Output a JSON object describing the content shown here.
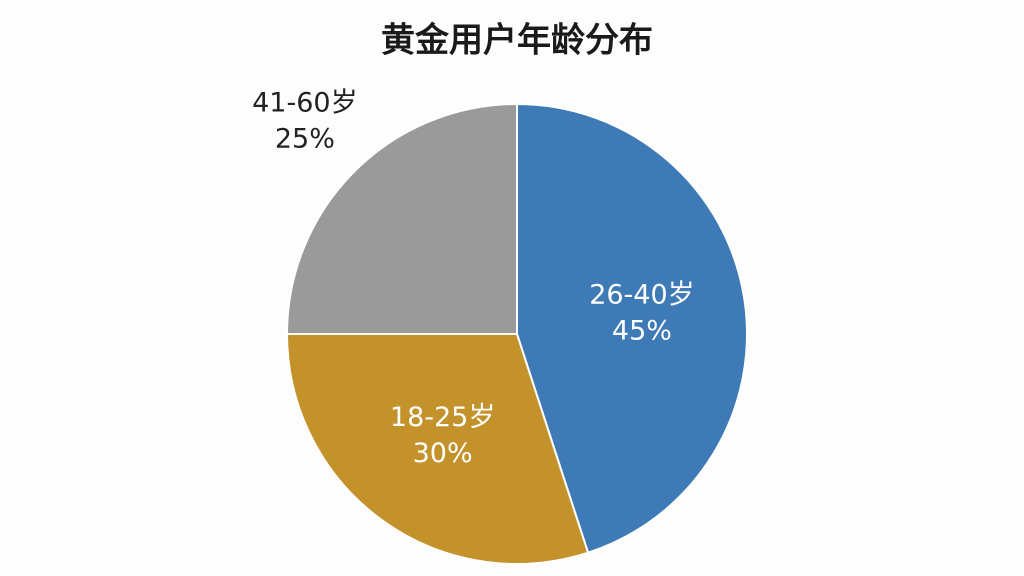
{
  "chart_data": {
    "type": "pie",
    "title": "黄金用户年龄分布",
    "categories": [
      "26-40岁",
      "18-25岁",
      "41-60岁"
    ],
    "values": [
      45,
      30,
      25
    ],
    "value_labels": [
      "45%",
      "30%",
      "25%"
    ],
    "colors": [
      "#3d7ab6",
      "#c4922a",
      "#9a9a9a"
    ]
  }
}
